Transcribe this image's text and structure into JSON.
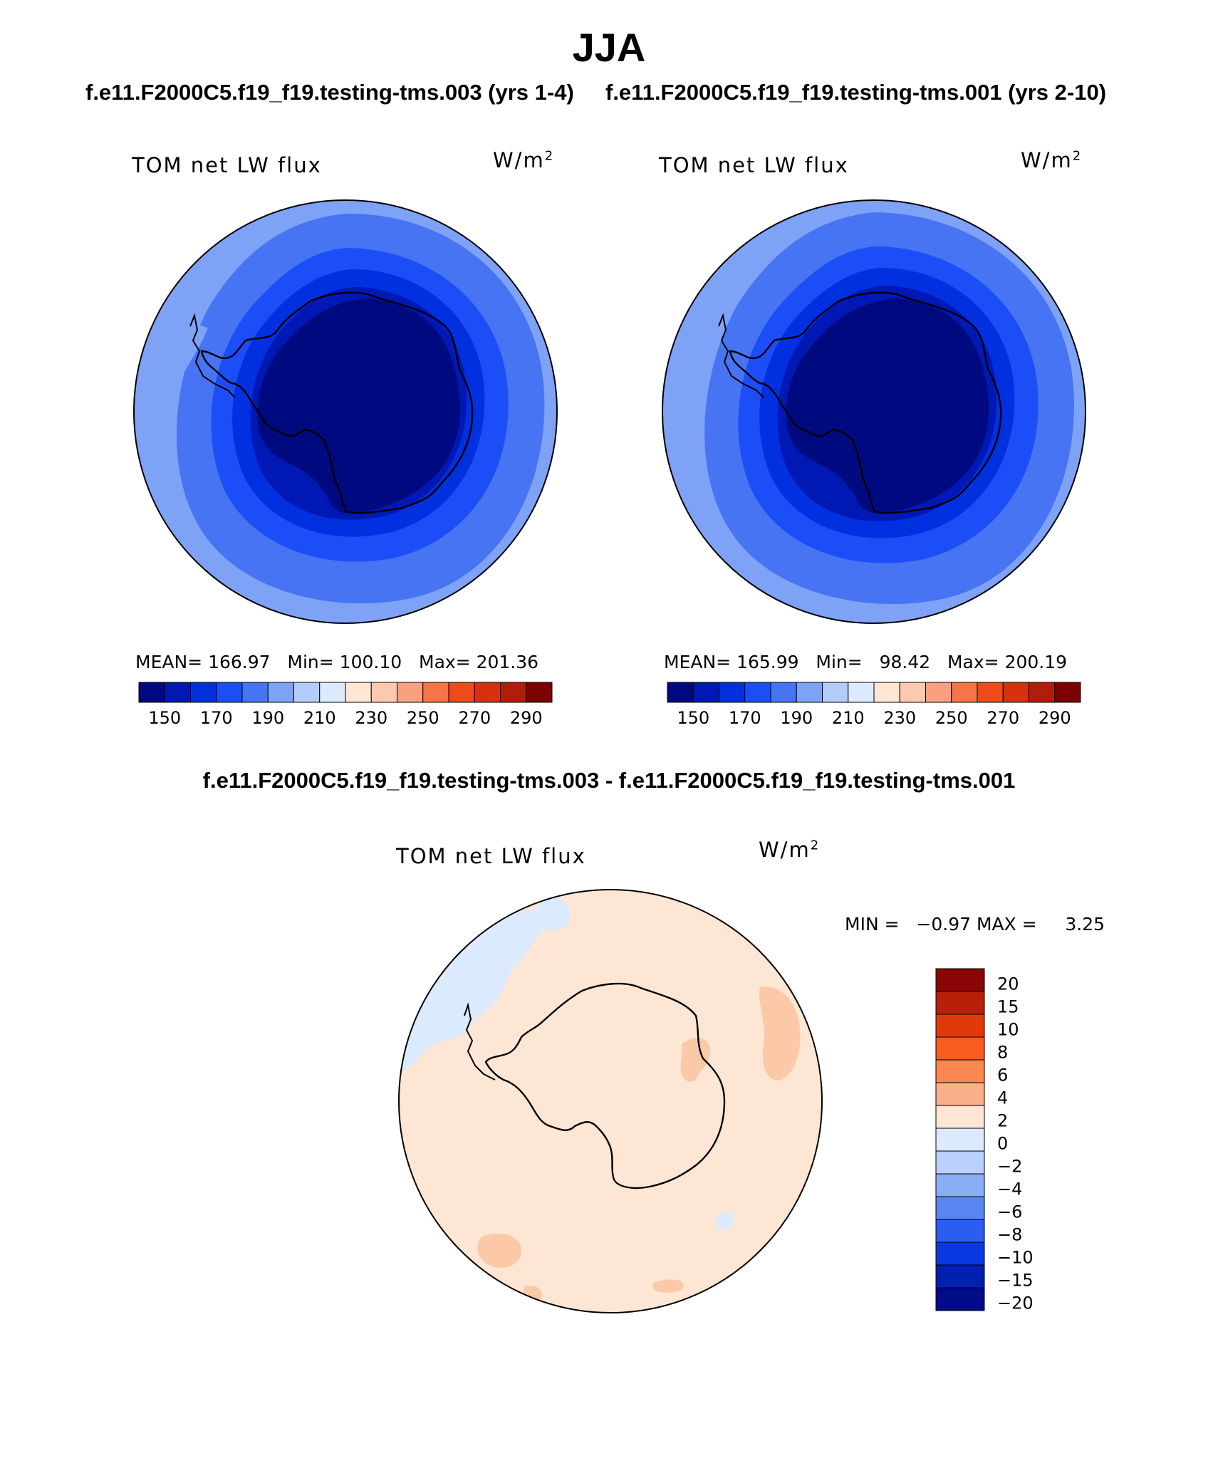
{
  "title": "JJA",
  "panels": [
    {
      "case_label": "f.e11.F2000C5.f19_f19.testing-tms.003 (yrs 1-4)",
      "variable": "TOM net LW flux",
      "units_base": "W/m",
      "units_exp": "2",
      "mean_label": "MEAN=",
      "mean_value": "166.97",
      "min_label": "Min=",
      "min_value": "100.10",
      "max_label": "Max=",
      "max_value": "201.36"
    },
    {
      "case_label": "f.e11.F2000C5.f19_f19.testing-tms.001 (yrs 2-10)",
      "variable": "TOM net LW flux",
      "units_base": "W/m",
      "units_exp": "2",
      "mean_label": "MEAN=",
      "mean_value": "165.99",
      "min_label": "Min=",
      "min_value": "98.42",
      "max_label": "Max=",
      "max_value": "200.19"
    }
  ],
  "abs_colorbar": {
    "colors": [
      "#000a80",
      "#0018b4",
      "#0030e0",
      "#1c4ef8",
      "#4674f2",
      "#7ea2f6",
      "#b4ccfa",
      "#dceaff",
      "#fde6d4",
      "#fcc8b0",
      "#f9a080",
      "#f67448",
      "#ef4a1c",
      "#d83010",
      "#b01e0a",
      "#7a0404"
    ],
    "tick_labels": [
      "150",
      "170",
      "190",
      "210",
      "230",
      "250",
      "270",
      "290"
    ]
  },
  "difference": {
    "title": "f.e11.F2000C5.f19_f19.testing-tms.003 - f.e11.F2000C5.f19_f19.testing-tms.001",
    "variable": "TOM net LW flux",
    "units_base": "W/m",
    "units_exp": "2",
    "min_label": "MIN =",
    "min_value": "−0.97",
    "max_label": "MAX =",
    "max_value": "3.25",
    "colorbar": {
      "colors_top_to_bottom": [
        "#8a0606",
        "#b8200a",
        "#e03a0a",
        "#f85c20",
        "#fa8650",
        "#fbb08c",
        "#fde6d4",
        "#dceaff",
        "#b8d0fa",
        "#8aaef6",
        "#5a86f2",
        "#2c5cf0",
        "#0a38e0",
        "#0220b0",
        "#000c88"
      ],
      "tick_labels": [
        "20",
        "15",
        "10",
        "8",
        "6",
        "4",
        "2",
        "0",
        "−2",
        "−4",
        "−6",
        "−8",
        "−10",
        "−15",
        "−20"
      ]
    }
  }
}
